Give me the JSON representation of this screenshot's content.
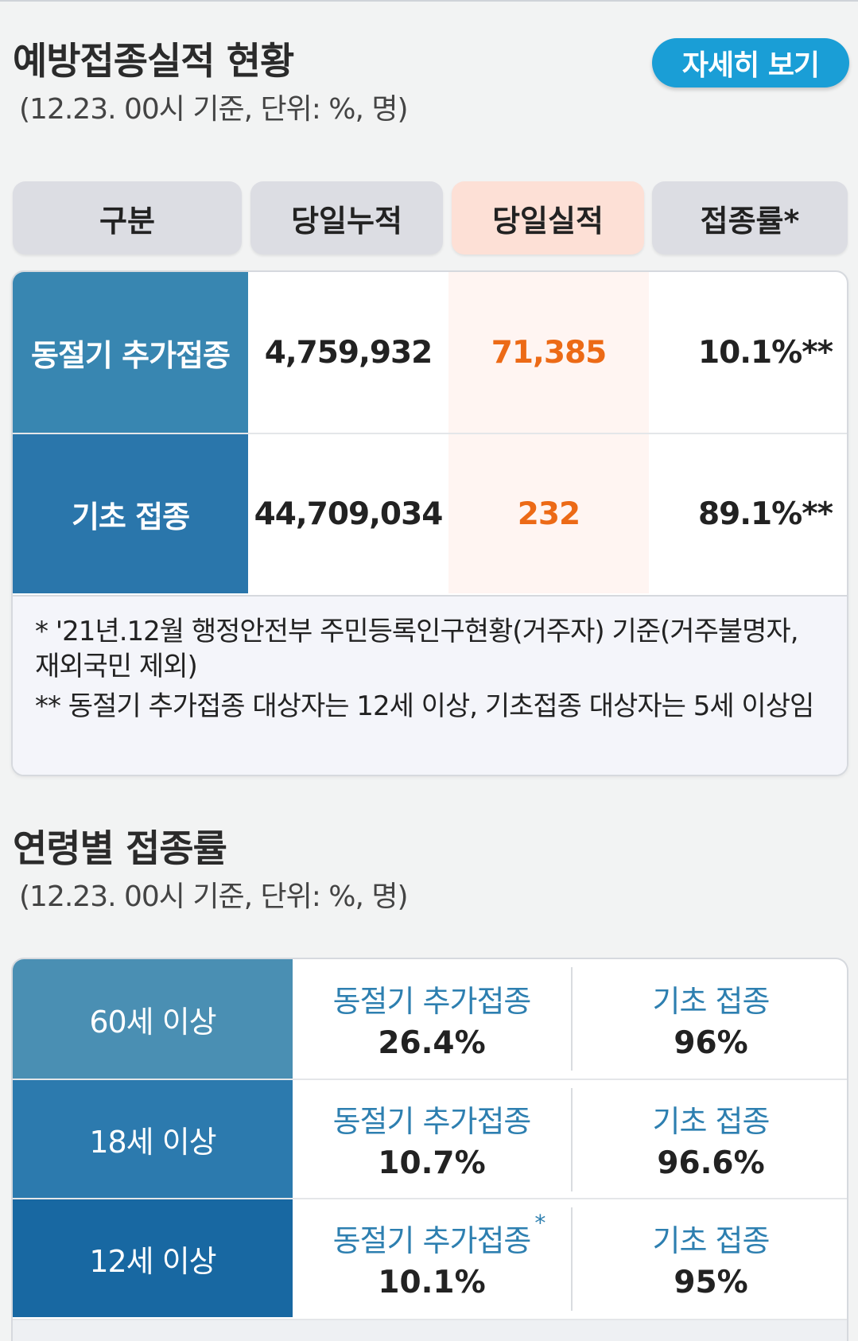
{
  "section1": {
    "title": "예방접종실적 현황",
    "subtitle": "(12.23. 00시 기준, 단위: %, 명)",
    "detail_button": "자세히 보기"
  },
  "table_headers": [
    "구분",
    "당일누적",
    "당일실적",
    "접종률*"
  ],
  "rows": [
    {
      "label": "동절기 추가접종",
      "cumulative": "4,759,932",
      "today": "71,385",
      "rate": "10.1%**"
    },
    {
      "label": "기초 접종",
      "cumulative": "44,709,034",
      "today": "232",
      "rate": "89.1%**"
    }
  ],
  "notes": [
    "* '21년.12월 행정안전부 주민등록인구현황(거주자) 기준(거주불명자, 재외국민 제외)",
    "** 동절기 추가접종 대상자는 12세 이상, 기초접종 대상자는 5세 이상임"
  ],
  "section2": {
    "title": "연령별 접종률",
    "subtitle": "(12.23. 00시 기준, 단위: %, 명)"
  },
  "age_rows": [
    {
      "age": "60세 이상",
      "booster_label": "동절기 추가접종",
      "booster_value": "26.4%",
      "basic_label": "기초 접종",
      "basic_value": "96%"
    },
    {
      "age": "18세 이상",
      "booster_label": "동절기 추가접종",
      "booster_value": "10.7%",
      "basic_label": "기초 접종",
      "basic_value": "96.6%"
    },
    {
      "age": "12세 이상",
      "booster_label": "동절기 추가접종",
      "booster_mark": "*",
      "booster_value": "10.1%",
      "basic_label": "기초 접종",
      "basic_value": "95%"
    }
  ],
  "colors": {
    "accent_button": "#1a9ed6",
    "today_value": "#ec6a16",
    "label_blue": "#2d7fb0",
    "header_highlight": "#fde0d6"
  }
}
